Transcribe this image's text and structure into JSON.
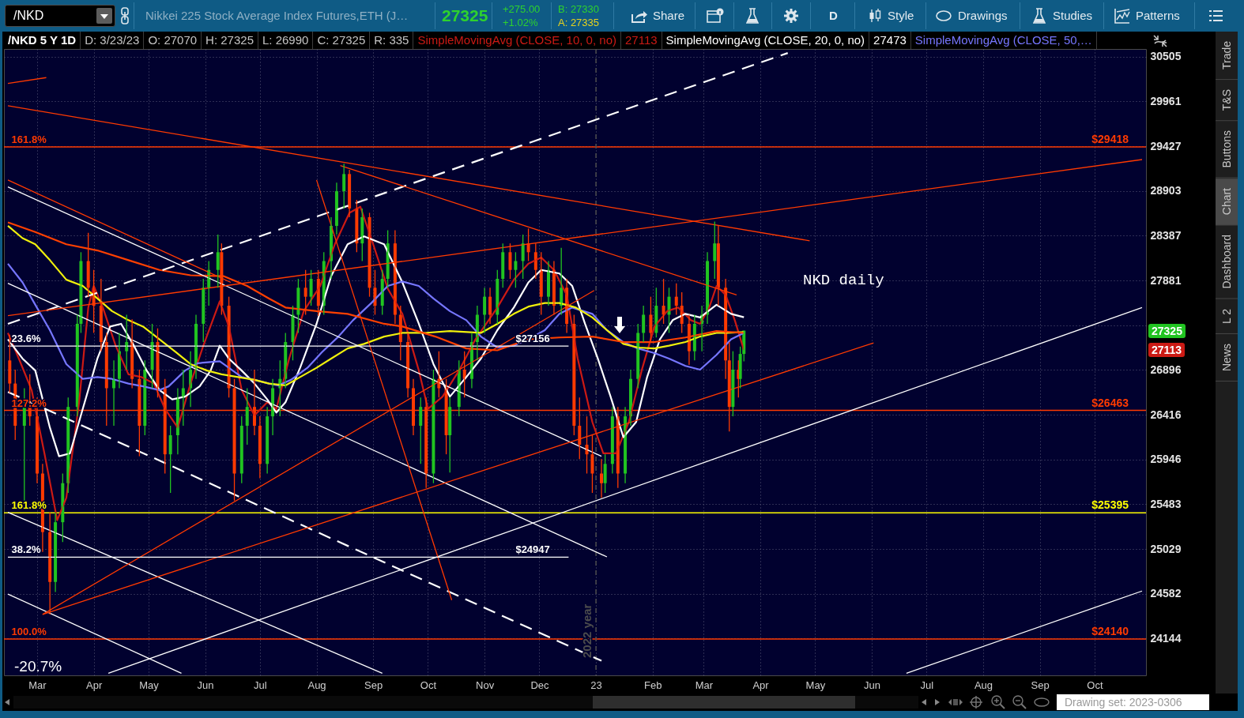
{
  "chart_data": {
    "type": "candlestick",
    "title": "/NKD 5 Y 1D",
    "x": [
      "2022-02-14",
      "2022-02-17",
      "2022-02-22",
      "2022-02-25",
      "2022-03-01",
      "2022-03-04",
      "2022-03-08",
      "2022-03-11",
      "2022-03-15",
      "2022-03-18",
      "2022-03-23",
      "2022-03-25",
      "2022-03-29",
      "2022-04-01",
      "2022-04-05",
      "2022-04-08",
      "2022-04-12",
      "2022-04-15",
      "2022-04-19",
      "2022-04-22",
      "2022-04-26",
      "2022-04-29",
      "2022-05-03",
      "2022-05-06",
      "2022-05-10",
      "2022-05-13",
      "2022-05-17",
      "2022-05-20",
      "2022-05-24",
      "2022-05-27",
      "2022-05-31",
      "2022-06-03",
      "2022-06-08",
      "2022-06-10",
      "2022-06-14",
      "2022-06-17",
      "2022-06-21",
      "2022-06-24",
      "2022-06-28",
      "2022-07-01",
      "2022-07-05",
      "2022-07-08",
      "2022-07-12",
      "2022-07-15",
      "2022-07-19",
      "2022-07-22",
      "2022-07-26",
      "2022-07-29",
      "2022-08-02",
      "2022-08-05",
      "2022-08-09",
      "2022-08-12",
      "2022-08-16",
      "2022-08-19",
      "2022-08-23",
      "2022-08-26",
      "2022-08-30",
      "2022-09-02",
      "2022-09-06",
      "2022-09-09",
      "2022-09-13",
      "2022-09-16",
      "2022-09-20",
      "2022-09-23",
      "2022-09-27",
      "2022-09-30",
      "2022-10-04",
      "2022-10-07",
      "2022-10-11",
      "2022-10-13",
      "2022-10-18",
      "2022-10-21",
      "2022-10-25",
      "2022-10-28",
      "2022-11-01",
      "2022-11-04",
      "2022-11-08",
      "2022-11-11",
      "2022-11-15",
      "2022-11-18",
      "2022-11-22",
      "2022-11-25",
      "2022-11-29",
      "2022-12-02",
      "2022-12-06",
      "2022-12-09",
      "2022-12-13",
      "2022-12-16",
      "2022-12-20",
      "2022-12-23",
      "2022-12-27",
      "2022-12-30",
      "2023-01-04",
      "2023-01-06",
      "2023-01-10",
      "2023-01-13",
      "2023-01-17",
      "2023-01-20",
      "2023-01-24",
      "2023-01-27",
      "2023-01-31",
      "2023-02-03",
      "2023-02-07",
      "2023-02-10",
      "2023-02-14",
      "2023-02-17",
      "2023-02-21",
      "2023-02-24",
      "2023-02-28",
      "2023-03-03",
      "2023-03-07",
      "2023-03-09",
      "2023-03-13",
      "2023-03-15",
      "2023-03-17",
      "2023-03-20",
      "2023-03-21",
      "2023-03-23"
    ],
    "ohlc": [
      [
        27000,
        27280,
        26650,
        26750
      ],
      [
        26750,
        26900,
        26150,
        26300
      ],
      [
        26300,
        26700,
        25520,
        26500
      ],
      [
        26500,
        26850,
        26300,
        26400
      ],
      [
        26400,
        26600,
        25700,
        25800
      ],
      [
        25800,
        25900,
        25000,
        25200
      ],
      [
        25200,
        25400,
        24380,
        24700
      ],
      [
        24700,
        25400,
        24600,
        25300
      ],
      [
        25300,
        25800,
        25100,
        25700
      ],
      [
        25700,
        26600,
        25600,
        26500
      ],
      [
        26500,
        27500,
        26400,
        27400
      ],
      [
        27400,
        28200,
        27300,
        28100
      ],
      [
        28100,
        28420,
        27700,
        27800
      ],
      [
        27800,
        28000,
        27300,
        27600
      ],
      [
        27600,
        27900,
        27100,
        27200
      ],
      [
        27200,
        27300,
        26300,
        26700
      ],
      [
        26700,
        27000,
        26300,
        26800
      ],
      [
        26800,
        27300,
        26700,
        27100
      ],
      [
        27100,
        27500,
        26900,
        27200
      ],
      [
        27200,
        27450,
        26700,
        26800
      ],
      [
        26800,
        26900,
        25980,
        26300
      ],
      [
        26300,
        27000,
        26200,
        26900
      ],
      [
        26900,
        27400,
        26700,
        27200
      ],
      [
        27200,
        27350,
        26600,
        26700
      ],
      [
        26700,
        26800,
        25800,
        26000
      ],
      [
        26000,
        26300,
        25600,
        26200
      ],
      [
        26200,
        26700,
        26000,
        26600
      ],
      [
        26600,
        26900,
        26300,
        26700
      ],
      [
        26700,
        27100,
        26500,
        26900
      ],
      [
        26900,
        27500,
        26800,
        27400
      ],
      [
        27400,
        27900,
        27200,
        27800
      ],
      [
        27800,
        28100,
        27600,
        28000
      ],
      [
        28000,
        28400,
        27800,
        28200
      ],
      [
        28200,
        28300,
        27500,
        27600
      ],
      [
        27600,
        27700,
        26600,
        26700
      ],
      [
        26700,
        26800,
        25520,
        25800
      ],
      [
        25800,
        26400,
        25700,
        26300
      ],
      [
        26300,
        26700,
        26100,
        26500
      ],
      [
        26500,
        26900,
        26200,
        26300
      ],
      [
        26300,
        26400,
        25750,
        25900
      ],
      [
        25900,
        26500,
        25800,
        26400
      ],
      [
        26400,
        26800,
        26200,
        26700
      ],
      [
        26700,
        27000,
        26400,
        26800
      ],
      [
        26800,
        27300,
        26700,
        27200
      ],
      [
        27200,
        27600,
        27000,
        27500
      ],
      [
        27500,
        27900,
        27300,
        27800
      ],
      [
        27800,
        28000,
        27500,
        27700
      ],
      [
        27700,
        28000,
        27600,
        27900
      ],
      [
        27900,
        28000,
        27490,
        27600
      ],
      [
        27600,
        28200,
        27500,
        28100
      ],
      [
        28100,
        28600,
        27900,
        28500
      ],
      [
        28500,
        29000,
        28400,
        28900
      ],
      [
        28900,
        29220,
        28700,
        29100
      ],
      [
        29100,
        29150,
        28600,
        28700
      ],
      [
        28700,
        28800,
        28200,
        28300
      ],
      [
        28300,
        28700,
        28100,
        28600
      ],
      [
        28600,
        28650,
        27700,
        27800
      ],
      [
        27800,
        28000,
        27500,
        27600
      ],
      [
        27600,
        28000,
        27500,
        27900
      ],
      [
        27900,
        28450,
        27800,
        28300
      ],
      [
        28300,
        28450,
        27400,
        27500
      ],
      [
        27500,
        27600,
        27000,
        27200
      ],
      [
        27200,
        27300,
        26600,
        26700
      ],
      [
        26700,
        26800,
        26200,
        26300
      ],
      [
        26300,
        26600,
        25900,
        26500
      ],
      [
        26500,
        26600,
        25650,
        25800
      ],
      [
        25800,
        26900,
        25700,
        26800
      ],
      [
        26800,
        27100,
        26600,
        26700
      ],
      [
        26700,
        26800,
        26000,
        26200
      ],
      [
        26200,
        26600,
        25810,
        26500
      ],
      [
        26500,
        27000,
        26400,
        26900
      ],
      [
        26900,
        27100,
        26600,
        26800
      ],
      [
        26800,
        27300,
        26700,
        27200
      ],
      [
        27200,
        27600,
        27000,
        27500
      ],
      [
        27500,
        27800,
        27300,
        27700
      ],
      [
        27700,
        27800,
        27400,
        27500
      ],
      [
        27500,
        28000,
        27400,
        27900
      ],
      [
        27900,
        28300,
        27800,
        28200
      ],
      [
        28200,
        28300,
        27900,
        28000
      ],
      [
        28000,
        28200,
        27800,
        28100
      ],
      [
        28100,
        28400,
        27900,
        28300
      ],
      [
        28300,
        28470,
        28100,
        28200
      ],
      [
        28200,
        28300,
        27900,
        28000
      ],
      [
        28000,
        28200,
        27500,
        27700
      ],
      [
        27700,
        28100,
        27600,
        28000
      ],
      [
        28000,
        28100,
        27500,
        27600
      ],
      [
        27600,
        28250,
        27500,
        27800
      ],
      [
        27800,
        27900,
        27300,
        27400
      ],
      [
        27400,
        27500,
        26200,
        26300
      ],
      [
        26300,
        26600,
        25950,
        26100
      ],
      [
        26100,
        26400,
        25800,
        26000
      ],
      [
        26000,
        26200,
        25600,
        25800
      ],
      [
        25800,
        25950,
        25550,
        25700
      ],
      [
        25700,
        26000,
        25600,
        25900
      ],
      [
        25900,
        26500,
        25800,
        26400
      ],
      [
        26400,
        26500,
        25650,
        25800
      ],
      [
        25800,
        26500,
        25700,
        26400
      ],
      [
        26400,
        26900,
        26300,
        26800
      ],
      [
        26800,
        27400,
        26700,
        27300
      ],
      [
        27300,
        27600,
        27200,
        27500
      ],
      [
        27500,
        27700,
        27200,
        27300
      ],
      [
        27300,
        27800,
        27250,
        27600
      ],
      [
        27600,
        27900,
        27400,
        27500
      ],
      [
        27500,
        27800,
        27300,
        27700
      ],
      [
        27700,
        27850,
        27500,
        27600
      ],
      [
        27600,
        27750,
        27300,
        27400
      ],
      [
        27400,
        27500,
        26950,
        27100
      ],
      [
        27100,
        27500,
        27000,
        27400
      ],
      [
        27400,
        27600,
        27100,
        27500
      ],
      [
        27500,
        28200,
        27400,
        28100
      ],
      [
        28100,
        28550,
        27900,
        28300
      ],
      [
        28300,
        28500,
        27600,
        27800
      ],
      [
        27800,
        27900,
        26800,
        27000
      ],
      [
        27000,
        27200,
        26240,
        26500
      ],
      [
        26500,
        27100,
        26400,
        26900
      ],
      [
        26900,
        27000,
        26600,
        26800
      ],
      [
        26800,
        27150,
        26700,
        27070
      ],
      [
        27070,
        27325,
        26990,
        27325
      ]
    ],
    "colors": [
      "#ff3a00",
      "#ff3a00",
      "#21c421",
      "#ff3a00",
      "#ff3a00",
      "#ff3a00",
      "#ff3a00",
      "#21c421",
      "#21c421",
      "#21c421",
      "#21c421",
      "#21c421",
      "#ff3a00",
      "#ff3a00",
      "#ff3a00",
      "#ff3a00",
      "#21c421",
      "#21c421",
      "#21c421",
      "#ff3a00",
      "#ff3a00",
      "#21c421",
      "#21c421",
      "#ff3a00",
      "#ff3a00",
      "#21c421",
      "#21c421",
      "#21c421",
      "#21c421",
      "#21c421",
      "#21c421",
      "#21c421",
      "#21c421",
      "#ff3a00",
      "#ff3a00",
      "#ff3a00",
      "#21c421",
      "#21c421",
      "#ff3a00",
      "#ff3a00",
      "#21c421",
      "#21c421",
      "#21c421",
      "#21c421",
      "#21c421",
      "#21c421",
      "#ff3a00",
      "#21c421",
      "#ff3a00",
      "#21c421",
      "#21c421",
      "#21c421",
      "#21c421",
      "#ff3a00",
      "#ff3a00",
      "#21c421",
      "#ff3a00",
      "#ff3a00",
      "#21c421",
      "#21c421",
      "#ff3a00",
      "#ff3a00",
      "#ff3a00",
      "#ff3a00",
      "#21c421",
      "#ff3a00",
      "#21c421",
      "#ff3a00",
      "#ff3a00",
      "#21c421",
      "#21c421",
      "#ff3a00",
      "#21c421",
      "#21c421",
      "#21c421",
      "#ff3a00",
      "#21c421",
      "#21c421",
      "#ff3a00",
      "#21c421",
      "#21c421",
      "#ff3a00",
      "#ff3a00",
      "#ff3a00",
      "#21c421",
      "#ff3a00",
      "#21c421",
      "#ff3a00",
      "#ff3a00",
      "#ff3a00",
      "#ff3a00",
      "#ff3a00",
      "#ff3a00",
      "#21c421",
      "#21c421",
      "#ff3a00",
      "#21c421",
      "#21c421",
      "#21c421",
      "#21c421",
      "#ff3a00",
      "#21c421",
      "#ff3a00",
      "#21c421",
      "#ff3a00",
      "#ff3a00",
      "#ff3a00",
      "#21c421",
      "#21c421",
      "#21c421",
      "#21c421",
      "#ff3a00",
      "#ff3a00",
      "#ff3a00",
      "#21c421",
      "#ff3a00",
      "#21c421",
      "#21c421"
    ],
    "value_labels": [
      null,
      null,
      null,
      null,
      null,
      null,
      null,
      null,
      null,
      null,
      null,
      null,
      null,
      null,
      null,
      null,
      null,
      null,
      null,
      null,
      null,
      null,
      null,
      null,
      null,
      null,
      null,
      null,
      null,
      null,
      null,
      null,
      null,
      null,
      null,
      null,
      null,
      null,
      null,
      null,
      null,
      null,
      null,
      null,
      null,
      null,
      null,
      null,
      null,
      null,
      null,
      null,
      null,
      null,
      null,
      null,
      null,
      null,
      null,
      null,
      null,
      null,
      null,
      null,
      null,
      null,
      null,
      null,
      null,
      null,
      null,
      null,
      null,
      null,
      null,
      null,
      null,
      null,
      null,
      null,
      null,
      null,
      null,
      null,
      null,
      null,
      null,
      null,
      null,
      null,
      null,
      null,
      null,
      null,
      null,
      null,
      null,
      null,
      null,
      null,
      null,
      null,
      null,
      null,
      null,
      null,
      null,
      null,
      null,
      null,
      null,
      null,
      null,
      null,
      null,
      null,
      null,
      "27325"
    ],
    "series": [
      {
        "type": "line",
        "name": "SimpleMovingAvg (CLOSE, 10, 0, no)",
        "color": "#cc1a14",
        "x": [
          "2022-02-13",
          "2022-02-19",
          "2022-02-26",
          "2022-03-05",
          "2022-03-12",
          "2022-03-17",
          "2022-03-24",
          "2022-03-29",
          "2022-04-01",
          "2022-04-06",
          "2022-04-13",
          "2022-04-20",
          "2022-04-27",
          "2022-05-04",
          "2022-05-10",
          "2022-05-17",
          "2022-05-24",
          "2022-05-31",
          "2022-06-09",
          "2022-06-14",
          "2022-06-21",
          "2022-06-28",
          "2022-07-05",
          "2022-07-10",
          "2022-07-17",
          "2022-07-25",
          "2022-08-03",
          "2022-08-11",
          "2022-08-19",
          "2022-08-25",
          "2022-09-01",
          "2022-09-09",
          "2022-09-17",
          "2022-09-26",
          "2022-10-01",
          "2022-10-09",
          "2022-10-18",
          "2022-10-27",
          "2022-11-08",
          "2022-11-17",
          "2022-11-25",
          "2022-12-02",
          "2022-12-09",
          "2022-12-16",
          "2022-12-22",
          "2022-12-30",
          "2023-01-05",
          "2023-01-12",
          "2023-01-19",
          "2023-01-26",
          "2023-02-02",
          "2023-02-09",
          "2023-02-15",
          "2023-02-22",
          "2023-02-27",
          "2023-03-04",
          "2023-03-08",
          "2023-03-13",
          "2023-03-18",
          "2023-03-23"
        ],
        "values": [
          27300,
          27020,
          26680,
          26010,
          25320,
          25550,
          26550,
          27580,
          27820,
          27580,
          27160,
          26850,
          26820,
          26750,
          26480,
          26280,
          26750,
          27160,
          27650,
          27370,
          26680,
          26410,
          26550,
          26480,
          27020,
          27540,
          27820,
          28290,
          28650,
          28720,
          28290,
          27790,
          27510,
          26890,
          26480,
          26610,
          26890,
          27230,
          27580,
          27890,
          28070,
          28140,
          28000,
          27720,
          27020,
          26340,
          26010,
          26010,
          26340,
          26890,
          27370,
          27540,
          27580,
          27440,
          27400,
          27580,
          27820,
          27720,
          27440,
          27113
        ]
      },
      {
        "type": "line",
        "name": "SimpleMovingAvg (CLOSE, 20, 0, no)",
        "color": "#ffffff",
        "x": [
          "2022-02-13",
          "2022-02-21",
          "2022-02-28",
          "2022-03-08",
          "2022-03-13",
          "2022-03-19",
          "2022-03-26",
          "2022-04-03",
          "2022-04-10",
          "2022-04-16",
          "2022-04-23",
          "2022-04-30",
          "2022-05-07",
          "2022-05-14",
          "2022-05-21",
          "2022-05-29",
          "2022-06-04",
          "2022-06-09",
          "2022-06-14",
          "2022-06-21",
          "2022-06-28",
          "2022-07-05",
          "2022-07-10",
          "2022-07-15",
          "2022-07-23",
          "2022-08-01",
          "2022-08-09",
          "2022-08-18",
          "2022-08-27",
          "2022-09-07",
          "2022-09-17",
          "2022-09-26",
          "2022-10-04",
          "2022-10-13",
          "2022-10-22",
          "2022-10-30",
          "2022-11-08",
          "2022-11-17",
          "2022-11-25",
          "2022-12-02",
          "2022-12-12",
          "2022-12-19",
          "2022-12-26",
          "2023-01-02",
          "2023-01-09",
          "2023-01-16",
          "2023-01-23",
          "2023-01-29",
          "2023-02-05",
          "2023-02-12",
          "2023-02-19",
          "2023-02-27",
          "2023-03-08",
          "2023-03-16",
          "2023-03-23"
        ],
        "values": [
          27230,
          27020,
          26890,
          26280,
          25980,
          26010,
          26480,
          27020,
          27370,
          27400,
          27160,
          26890,
          26680,
          26580,
          26610,
          26720,
          26890,
          27160,
          27020,
          26890,
          26750,
          26580,
          26440,
          26550,
          26920,
          27400,
          27930,
          28290,
          28380,
          28290,
          27860,
          27400,
          26960,
          26610,
          26820,
          27020,
          27330,
          27580,
          27860,
          28000,
          27960,
          27820,
          27400,
          27020,
          26610,
          26180,
          26340,
          26820,
          27230,
          27440,
          27510,
          27470,
          27610,
          27510,
          27473
        ]
      },
      {
        "type": "line",
        "name": "SimpleMovingAvg (CLOSE, 50,…",
        "color": "#7676ff",
        "x": [
          "2022-02-13",
          "2022-02-21",
          "2022-02-28",
          "2022-03-08",
          "2022-03-17",
          "2022-03-26",
          "2022-04-03",
          "2022-04-11",
          "2022-04-20",
          "2022-04-28",
          "2022-05-07",
          "2022-05-12",
          "2022-05-21",
          "2022-05-28",
          "2022-06-09",
          "2022-06-14",
          "2022-06-21",
          "2022-06-28",
          "2022-07-06",
          "2022-07-11",
          "2022-07-18",
          "2022-07-27",
          "2022-08-04",
          "2022-08-13",
          "2022-08-21",
          "2022-08-31",
          "2022-09-09",
          "2022-09-17",
          "2022-09-26",
          "2022-10-04",
          "2022-10-13",
          "2022-10-22",
          "2022-10-30",
          "2022-11-08",
          "2022-11-17",
          "2022-11-25",
          "2022-12-04",
          "2022-12-12",
          "2022-12-19",
          "2022-12-30",
          "2023-01-07",
          "2023-01-16",
          "2023-01-24",
          "2023-02-02",
          "2023-02-10",
          "2023-02-19",
          "2023-02-27",
          "2023-03-08",
          "2023-03-16",
          "2023-03-23"
        ],
        "values": [
          28070,
          27860,
          27610,
          27330,
          26960,
          26800,
          26820,
          26800,
          26750,
          26720,
          26680,
          26720,
          26890,
          26970,
          26990,
          26920,
          26820,
          26790,
          26750,
          26730,
          26790,
          26920,
          27090,
          27260,
          27440,
          27630,
          27820,
          27870,
          27820,
          27680,
          27540,
          27440,
          27260,
          27140,
          27160,
          27230,
          27330,
          27510,
          27580,
          27510,
          27330,
          27200,
          27130,
          27080,
          27020,
          26940,
          26900,
          27060,
          27230,
          27300
        ]
      },
      {
        "type": "line",
        "color": "#f0f00c",
        "x": [
          "2022-02-13",
          "2022-02-21",
          "2022-02-28",
          "2022-03-08",
          "2022-03-17",
          "2022-03-26",
          "2022-04-03",
          "2022-04-11",
          "2022-04-20",
          "2022-04-28",
          "2022-05-07",
          "2022-05-16",
          "2022-05-24",
          "2022-06-02",
          "2022-06-10",
          "2022-06-19",
          "2022-06-28",
          "2022-07-06",
          "2022-07-15",
          "2022-07-23",
          "2022-08-01",
          "2022-08-09",
          "2022-08-18",
          "2022-08-27",
          "2022-09-07",
          "2022-09-17",
          "2022-09-29",
          "2022-10-13",
          "2022-10-30",
          "2022-11-08",
          "2022-11-17",
          "2022-11-25",
          "2022-12-04",
          "2022-12-12",
          "2022-12-21",
          "2022-12-30",
          "2023-01-07",
          "2023-01-16",
          "2023-01-24",
          "2023-02-02",
          "2023-02-10",
          "2023-02-19",
          "2023-02-27",
          "2023-03-08",
          "2023-03-14",
          "2023-03-23"
        ],
        "values": [
          28500,
          28360,
          28290,
          28110,
          27890,
          27820,
          27680,
          27540,
          27440,
          27370,
          27230,
          27090,
          26960,
          26890,
          26850,
          26820,
          26790,
          26750,
          26730,
          26820,
          26920,
          27020,
          27130,
          27180,
          27260,
          27300,
          27300,
          27320,
          27300,
          27400,
          27510,
          27590,
          27630,
          27630,
          27580,
          27470,
          27330,
          27180,
          27140,
          27130,
          27160,
          27200,
          27260,
          27300,
          27300,
          27310
        ]
      },
      {
        "type": "line",
        "color": "#ff4000",
        "x": [
          "2022-02-13",
          "2022-02-28",
          "2022-03-17",
          "2022-04-03",
          "2022-04-20",
          "2022-05-07",
          "2022-05-24",
          "2022-06-11",
          "2022-06-24",
          "2022-07-06",
          "2022-07-15",
          "2022-08-01",
          "2022-08-18",
          "2022-09-07",
          "2022-09-17",
          "2022-10-05",
          "2022-10-22",
          "2022-11-08",
          "2022-11-25",
          "2022-12-12",
          "2022-12-30",
          "2023-01-16",
          "2023-02-02",
          "2023-02-19",
          "2023-03-08",
          "2023-03-23"
        ],
        "values": [
          28540,
          28430,
          28290,
          28220,
          28110,
          28000,
          27940,
          27930,
          27820,
          27680,
          27580,
          27540,
          27510,
          27400,
          27370,
          27260,
          27130,
          27110,
          27230,
          27250,
          27260,
          27200,
          27200,
          27250,
          27320,
          27300
        ]
      },
      {
        "type": "line",
        "color": "#ffffff",
        "x": [
          "2022-02-13",
          "2023-01-04"
        ],
        "values": [
          28950,
          25980
        ]
      },
      {
        "type": "line",
        "color": "#ffffff",
        "x": [
          "2022-02-13",
          "2023-01-07"
        ],
        "values": [
          27850,
          24950
        ]
      },
      {
        "type": "line",
        "color": "#ffffff",
        "line_style": "dashed",
        "x": [
          "2022-02-13",
          "2023-01-04"
        ],
        "values": [
          26660,
          23930
        ]
      },
      {
        "type": "line",
        "color": "#ffffff",
        "x": [
          "2022-02-13",
          "2022-05-19"
        ],
        "values": [
          24580,
          23810
        ]
      },
      {
        "type": "line",
        "color": "#ffffff",
        "x": [
          "2022-02-13",
          "2022-09-06"
        ],
        "values": [
          25400,
          23810
        ]
      },
      {
        "type": "line",
        "color": "#ffffff",
        "line_style": "dashed",
        "x": [
          "2022-02-13",
          "2023-04-16"
        ],
        "values": [
          27400,
          30550
        ]
      },
      {
        "type": "line",
        "color": "#ffffff",
        "x": [
          "2022-04-09",
          "2023-10-27"
        ],
        "values": [
          23810,
          27580
        ]
      },
      {
        "type": "line",
        "color": "#ffffff",
        "x": [
          "2023-06-20",
          "2023-10-27"
        ],
        "values": [
          23810,
          24610
        ]
      },
      {
        "type": "line",
        "color": "#ff3a00",
        "x": [
          "2022-02-13",
          "2023-04-28"
        ],
        "values": [
          29910,
          28330
        ]
      },
      {
        "type": "line",
        "color": "#ff3a00",
        "x": [
          "2022-08-14",
          "2023-03-19"
        ],
        "values": [
          29200,
          27720
        ]
      },
      {
        "type": "line",
        "color": "#ff3a00",
        "x": [
          "2022-02-13",
          "2023-10-27"
        ],
        "values": [
          27490,
          29270
        ]
      },
      {
        "type": "line",
        "color": "#ff3a00",
        "x": [
          "2022-03-04",
          "2022-12-31"
        ],
        "values": [
          24380,
          27770
        ]
      },
      {
        "type": "line",
        "color": "#ff3a00",
        "x": [
          "2022-03-04",
          "2023-06-02"
        ],
        "values": [
          24380,
          27190
        ]
      },
      {
        "type": "line",
        "color": "#ff3a00",
        "x": [
          "2022-08-01",
          "2022-10-14"
        ],
        "values": [
          29030,
          24520
        ]
      },
      {
        "type": "line",
        "color": "#ff3a00",
        "x": [
          "2022-02-13",
          "2022-06-15"
        ],
        "values": [
          29030,
          27860
        ]
      },
      {
        "type": "line",
        "color": "#ff3a00",
        "x": [
          "2022-02-13",
          "2022-03-06"
        ],
        "values": [
          30180,
          30250
        ]
      },
      {
        "type": "line",
        "color": "#ffffff",
        "x": [
          "2022-02-13",
          "2022-12-17"
        ],
        "values": [
          27156,
          27156
        ]
      },
      {
        "type": "line",
        "color": "#ffffff",
        "x": [
          "2022-02-13",
          "2022-12-17"
        ],
        "values": [
          24947,
          24947
        ]
      }
    ],
    "xlim": [
      "2022-02-13",
      "2023-10-27"
    ],
    "ylim": [
      23790,
      30600
    ],
    "xticks": [
      {
        "value": "2022-03-01",
        "label": "Mar"
      },
      {
        "value": "2022-04-01",
        "label": "Apr"
      },
      {
        "value": "2022-05-01",
        "label": "May"
      },
      {
        "value": "2022-06-01",
        "label": "Jun"
      },
      {
        "value": "2022-07-01",
        "label": "Jul"
      },
      {
        "value": "2022-08-01",
        "label": "Aug"
      },
      {
        "value": "2022-09-01",
        "label": "Sep"
      },
      {
        "value": "2022-10-01",
        "label": "Oct"
      },
      {
        "value": "2022-11-01",
        "label": "Nov"
      },
      {
        "value": "2022-12-01",
        "label": "Dec"
      },
      {
        "value": "2023-01-01",
        "label": "23"
      },
      {
        "value": "2023-02-01",
        "label": "Feb"
      },
      {
        "value": "2023-03-01",
        "label": "Mar"
      },
      {
        "value": "2023-04-01",
        "label": "Apr"
      },
      {
        "value": "2023-05-01",
        "label": "May"
      },
      {
        "value": "2023-06-01",
        "label": "Jun"
      },
      {
        "value": "2023-07-01",
        "label": "Jul"
      },
      {
        "value": "2023-08-01",
        "label": "Aug"
      },
      {
        "value": "2023-09-01",
        "label": "Sep"
      },
      {
        "value": "2023-10-01",
        "label": "Oct"
      }
    ],
    "yticks": [
      30505,
      29961,
      29427,
      28903,
      28387,
      27881,
      {
        "value": 27384,
        "label": null
      },
      26896,
      26416,
      25946,
      25483,
      25029,
      24582,
      24144
    ],
    "log": true,
    "grid": true,
    "legend": "top",
    "ref_lines": [
      {
        "axis": "y",
        "value": 29418,
        "label": "$29418",
        "color": "#ff3a00"
      },
      {
        "axis": "y",
        "value": 26463,
        "label": "$26463",
        "color": "#ff3a00"
      },
      {
        "axis": "y",
        "value": 25395,
        "label": "$25395",
        "color": "#ffff00"
      },
      {
        "axis": "y",
        "value": 24140,
        "label": "$24140",
        "color": "#ff3a00"
      },
      {
        "axis": "x",
        "value": "2023-01-01",
        "label": "2022 year",
        "color": "#4d4d4d",
        "line_style": "dashed"
      }
    ],
    "annotations": [
      "D: 3/23/23",
      "O: 27070",
      "H: 27325",
      "L: 26990",
      "C: 27325",
      "R: 335",
      "27113",
      "27473",
      "/NKD",
      "Nikkei 225 Stock Average Index Futures,ETH (J…",
      "27325",
      "+275.00",
      "+1.02%",
      "B: 27330",
      "A: 27335",
      "Share",
      "D",
      "Style",
      "Drawings",
      "Studies",
      "Patterns",
      "Trade",
      "T&S",
      "Buttons",
      "Chart",
      "Dashboard",
      "L 2",
      "News",
      "Drawing set: 2023-0306",
      "27113",
      "NKD daily",
      "-20.7%",
      {
        "text": "161.8%",
        "x": "2022-02-15",
        "y": 29418
      },
      {
        "text": "127.2%",
        "x": "2022-02-15",
        "y": 26463
      },
      {
        "text": "161.8%",
        "x": "2022-02-15",
        "y": 25395
      },
      {
        "text": "100.0%",
        "x": "2022-02-15",
        "y": 24140
      },
      {
        "text": "23.6%",
        "x": "2022-02-15",
        "y": 27156
      },
      {
        "text": "38.2%",
        "x": "2022-02-15",
        "y": 24947
      },
      {
        "text": "$27156",
        "x": "2022-11-18",
        "y": 27156
      },
      {
        "text": "$24947",
        "x": "2022-11-18",
        "y": 24947
      }
    ]
  }
}
